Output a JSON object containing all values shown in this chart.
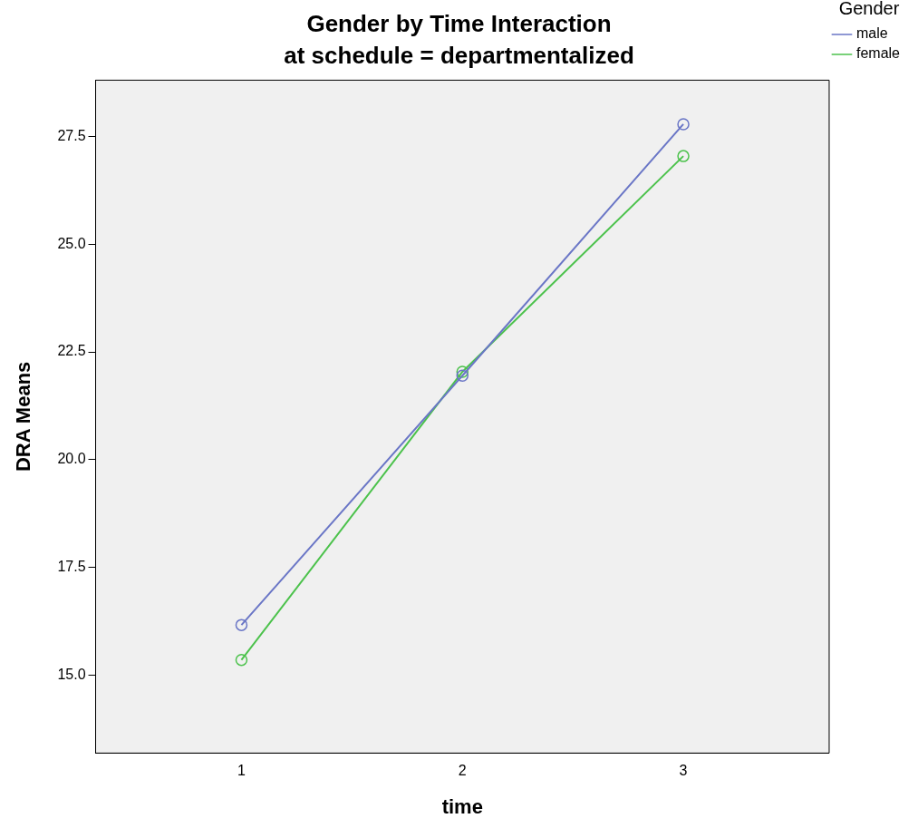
{
  "chart_data": {
    "type": "line",
    "title": "Gender by Time Interaction",
    "subtitle": "at schedule = departmentalized",
    "xlabel": "time",
    "ylabel": "DRA Means",
    "legend_title": "Gender",
    "x": [
      1,
      2,
      3
    ],
    "series": [
      {
        "name": "male",
        "color": "#6a76c6",
        "values": [
          16.17,
          21.95,
          27.78
        ]
      },
      {
        "name": "female",
        "color": "#4cc24c",
        "values": [
          15.36,
          22.04,
          27.04
        ]
      }
    ],
    "xlim": [
      0.34,
      3.66
    ],
    "xticks": [
      1,
      2,
      3
    ],
    "ylim": [
      13.2,
      28.8
    ],
    "yticks": [
      {
        "value": 15,
        "label": "15.0"
      },
      {
        "value": 17.5,
        "label": "17.5"
      },
      {
        "value": 20,
        "label": "20.0"
      },
      {
        "value": 22.5,
        "label": "22.5"
      },
      {
        "value": 25,
        "label": "25.0"
      },
      {
        "value": 27.5,
        "label": "27.5"
      }
    ],
    "marker": "circle",
    "line_style": "solid",
    "grid": false,
    "legend": "top right"
  }
}
